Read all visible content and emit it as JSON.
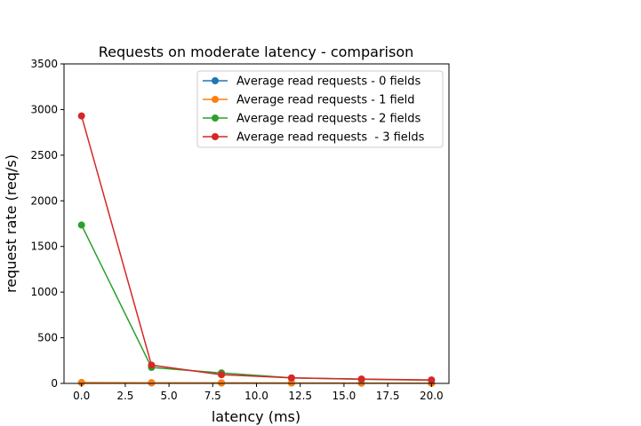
{
  "chart_data": {
    "type": "line",
    "title": "Requests on moderate latency - comparison",
    "xlabel": "latency (ms)",
    "ylabel": "request rate (req/s)",
    "xlim": [
      -1.0,
      21.0
    ],
    "ylim": [
      0,
      3500
    ],
    "xticks": [
      0.0,
      2.5,
      5.0,
      7.5,
      10.0,
      12.5,
      15.0,
      17.5,
      20.0
    ],
    "xtick_labels": [
      "0.0",
      "2.5",
      "5.0",
      "7.5",
      "10.0",
      "12.5",
      "15.0",
      "17.5",
      "20.0"
    ],
    "yticks": [
      0,
      500,
      1000,
      1500,
      2000,
      2500,
      3000,
      3500
    ],
    "ytick_labels": [
      "0",
      "500",
      "1000",
      "1500",
      "2000",
      "2500",
      "3000",
      "3500"
    ],
    "grid": false,
    "legend_position": "top-right",
    "x": [
      0,
      4,
      8,
      12,
      16,
      20
    ],
    "series": [
      {
        "name": "Average read requests - 0 fields",
        "color": "#1f77b4",
        "values": [
          8,
          6,
          5,
          4,
          3,
          2
        ]
      },
      {
        "name": "Average read requests - 1 field",
        "color": "#ff7f0e",
        "values": [
          10,
          8,
          6,
          5,
          4,
          2
        ]
      },
      {
        "name": "Average read requests - 2 fields",
        "color": "#2ca02c",
        "values": [
          1735,
          175,
          115,
          60,
          45,
          35
        ]
      },
      {
        "name": "Average read requests  - 3 fields",
        "color": "#d62728",
        "values": [
          2930,
          200,
          95,
          60,
          48,
          38
        ]
      }
    ]
  }
}
